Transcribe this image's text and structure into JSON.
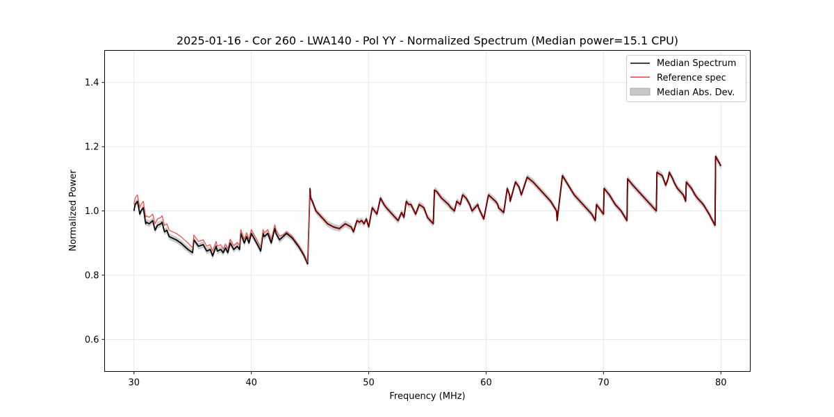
{
  "chart_data": {
    "type": "line",
    "title": "2025-01-16 - Cor 260 - LWA140 - Pol YY - Normalized Spectrum (Median power=15.1 CPU)",
    "xlabel": "Frequency (MHz)",
    "ylabel": "Normalized Power",
    "xlim": [
      27.5,
      82.5
    ],
    "ylim": [
      0.5,
      1.5
    ],
    "xticks": [
      30,
      40,
      50,
      60,
      70,
      80
    ],
    "yticks": [
      0.6,
      0.8,
      1.0,
      1.2,
      1.4
    ],
    "xtick_labels": [
      "30",
      "40",
      "50",
      "60",
      "70",
      "80"
    ],
    "ytick_labels": [
      "0.6",
      "0.8",
      "1.0",
      "1.2",
      "1.4"
    ],
    "grid": true,
    "legend_position": "top-right",
    "legend": [
      "Median Spectrum",
      "Reference spec",
      "Median Abs. Dev."
    ],
    "mad_width": 0.01,
    "series": [
      {
        "name": "Median Spectrum",
        "color": "#000000",
        "x": [
          30.0,
          30.1,
          30.3,
          30.5,
          30.6,
          30.8,
          31.0,
          31.05,
          31.3,
          31.6,
          31.8,
          32.0,
          32.3,
          32.4,
          32.6,
          32.8,
          33.0,
          33.3,
          33.6,
          34.0,
          34.3,
          34.6,
          35.0,
          35.1,
          35.5,
          35.9,
          36.2,
          36.5,
          36.7,
          37.0,
          37.1,
          37.4,
          37.6,
          37.8,
          38.0,
          38.2,
          38.5,
          38.8,
          39.0,
          39.1,
          39.4,
          39.6,
          39.8,
          40.0,
          40.3,
          40.6,
          40.8,
          41.0,
          41.1,
          41.4,
          41.7,
          42.0,
          42.1,
          42.4,
          42.7,
          43.0,
          43.5,
          43.8,
          44.1,
          44.5,
          44.8,
          45.0,
          45.05,
          45.2,
          45.5,
          46.0,
          46.5,
          47.0,
          47.5,
          48.0,
          48.5,
          48.7,
          49.0,
          49.2,
          49.4,
          49.6,
          49.8,
          50.0,
          50.3,
          50.5,
          50.7,
          51.0,
          51.3,
          51.5,
          52.0,
          52.5,
          52.8,
          53.0,
          53.2,
          53.4,
          53.6,
          54.0,
          54.3,
          54.7,
          55.0,
          55.5,
          55.6,
          55.8,
          56.2,
          56.8,
          57.0,
          57.3,
          57.5,
          57.8,
          58.0,
          58.3,
          58.6,
          58.8,
          59.3,
          59.35,
          59.8,
          60.2,
          60.5,
          60.8,
          61.0,
          61.05,
          61.5,
          61.8,
          62.0,
          62.05,
          62.5,
          62.8,
          63.0,
          63.5,
          64.0,
          64.5,
          65.0,
          65.5,
          66.0,
          66.05,
          66.5,
          67.0,
          67.5,
          68.0,
          68.5,
          69.0,
          69.3,
          69.4,
          69.8,
          70.0,
          70.05,
          70.5,
          71.0,
          71.5,
          72.0,
          72.05,
          72.5,
          73.0,
          73.5,
          74.0,
          74.5,
          74.55,
          75.0,
          75.3,
          75.5,
          75.6,
          75.9,
          76.0,
          76.3,
          76.8,
          76.9,
          77.0,
          77.05,
          77.5,
          77.8,
          78.0,
          78.5,
          79.0,
          79.5,
          79.55,
          80.0
        ],
        "y": [
          1.0,
          1.02,
          1.03,
          0.99,
          1.0,
          1.01,
          0.96,
          0.965,
          0.96,
          0.97,
          0.94,
          0.955,
          0.96,
          0.965,
          0.935,
          0.94,
          0.92,
          0.915,
          0.91,
          0.9,
          0.89,
          0.88,
          0.87,
          0.91,
          0.89,
          0.895,
          0.875,
          0.88,
          0.86,
          0.89,
          0.875,
          0.88,
          0.87,
          0.885,
          0.87,
          0.9,
          0.88,
          0.89,
          0.88,
          0.93,
          0.9,
          0.92,
          0.9,
          0.93,
          0.91,
          0.89,
          0.875,
          0.93,
          0.92,
          0.93,
          0.9,
          0.945,
          0.93,
          0.91,
          0.92,
          0.93,
          0.915,
          0.9,
          0.885,
          0.86,
          0.835,
          1.07,
          1.04,
          1.03,
          1.0,
          0.98,
          0.96,
          0.95,
          0.945,
          0.96,
          0.95,
          0.935,
          0.97,
          0.965,
          0.97,
          0.96,
          0.975,
          0.95,
          1.01,
          1.0,
          0.99,
          1.04,
          1.02,
          1.01,
          0.99,
          0.97,
          0.995,
          0.98,
          1.03,
          1.02,
          1.02,
          0.99,
          1.02,
          1.01,
          0.98,
          0.96,
          1.065,
          1.06,
          1.04,
          1.02,
          1.01,
          1.0,
          1.03,
          1.02,
          1.05,
          1.04,
          1.02,
          1.0,
          1.02,
          1.01,
          0.975,
          1.05,
          1.04,
          1.03,
          1.02,
          1.01,
          0.995,
          1.07,
          1.05,
          1.03,
          1.09,
          1.075,
          1.05,
          1.105,
          1.09,
          1.07,
          1.05,
          1.03,
          1.0,
          0.97,
          1.11,
          1.08,
          1.05,
          1.03,
          1.01,
          0.99,
          0.97,
          1.02,
          1.0,
          0.99,
          1.07,
          1.05,
          1.02,
          1.0,
          0.97,
          1.1,
          1.08,
          1.06,
          1.04,
          1.02,
          1.0,
          1.12,
          1.11,
          1.08,
          1.1,
          1.12,
          1.1,
          1.09,
          1.07,
          1.05,
          1.04,
          1.03,
          1.09,
          1.07,
          1.05,
          1.04,
          1.02,
          0.99,
          0.955,
          1.17,
          1.14
        ]
      },
      {
        "name": "Reference spec",
        "color": "#e8403a",
        "offset": [
          0.02,
          0.02,
          0.015,
          0.012,
          0.012,
          0.005,
          0.0
        ]
      }
    ]
  }
}
